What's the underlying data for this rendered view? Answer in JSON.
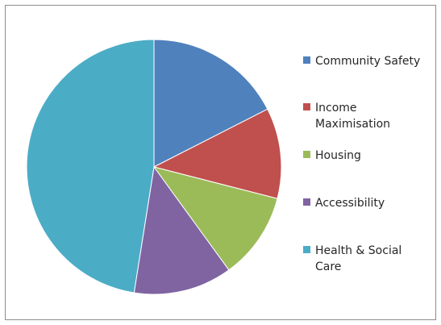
{
  "chart_data": {
    "type": "pie",
    "title": "",
    "start_angle_deg": 0,
    "direction": "clockwise",
    "legend_position": "right",
    "slices": [
      {
        "label": [
          "Community Safety"
        ],
        "value": 17.5,
        "color": "#4F81BD"
      },
      {
        "label": [
          "Income",
          "Maximisation"
        ],
        "value": 11.5,
        "color": "#C0504D"
      },
      {
        "label": [
          "Housing"
        ],
        "value": 11.0,
        "color": "#9BBB59"
      },
      {
        "label": [
          "Accessibility"
        ],
        "value": 12.5,
        "color": "#8064A2"
      },
      {
        "label": [
          "Health & Social",
          "Care"
        ],
        "value": 47.5,
        "color": "#4BACC6"
      }
    ]
  }
}
